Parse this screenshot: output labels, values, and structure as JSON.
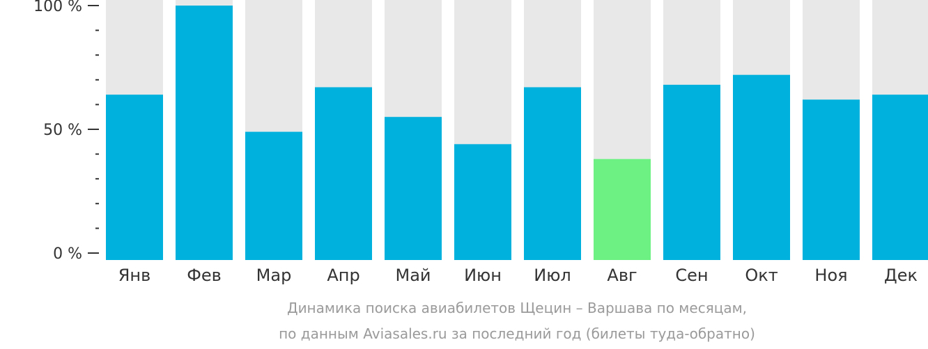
{
  "chart_data": {
    "type": "bar",
    "categories": [
      "Янв",
      "Фев",
      "Мар",
      "Апр",
      "Май",
      "Июн",
      "Июл",
      "Авг",
      "Сен",
      "Окт",
      "Ноя",
      "Дек"
    ],
    "values": [
      64,
      100,
      49,
      67,
      55,
      44,
      67,
      38,
      68,
      72,
      62,
      64
    ],
    "ylim": [
      0,
      100
    ],
    "y_ticks": [
      {
        "value": 0,
        "label": "0 %"
      },
      {
        "value": 50,
        "label": "50 %"
      },
      {
        "value": 100,
        "label": "100 %"
      }
    ],
    "highlight_index": 7,
    "caption_line1": "Динамика поиска авиабилетов Щецин – Варшава по месяцам,",
    "caption_line2": "по данным Aviasales.ru за последний год (билеты туда-обратно)",
    "colors": {
      "bar": "#00b0dd",
      "highlight": "#6cf182",
      "track": "#e8e8e8",
      "axis": "#333333"
    }
  }
}
